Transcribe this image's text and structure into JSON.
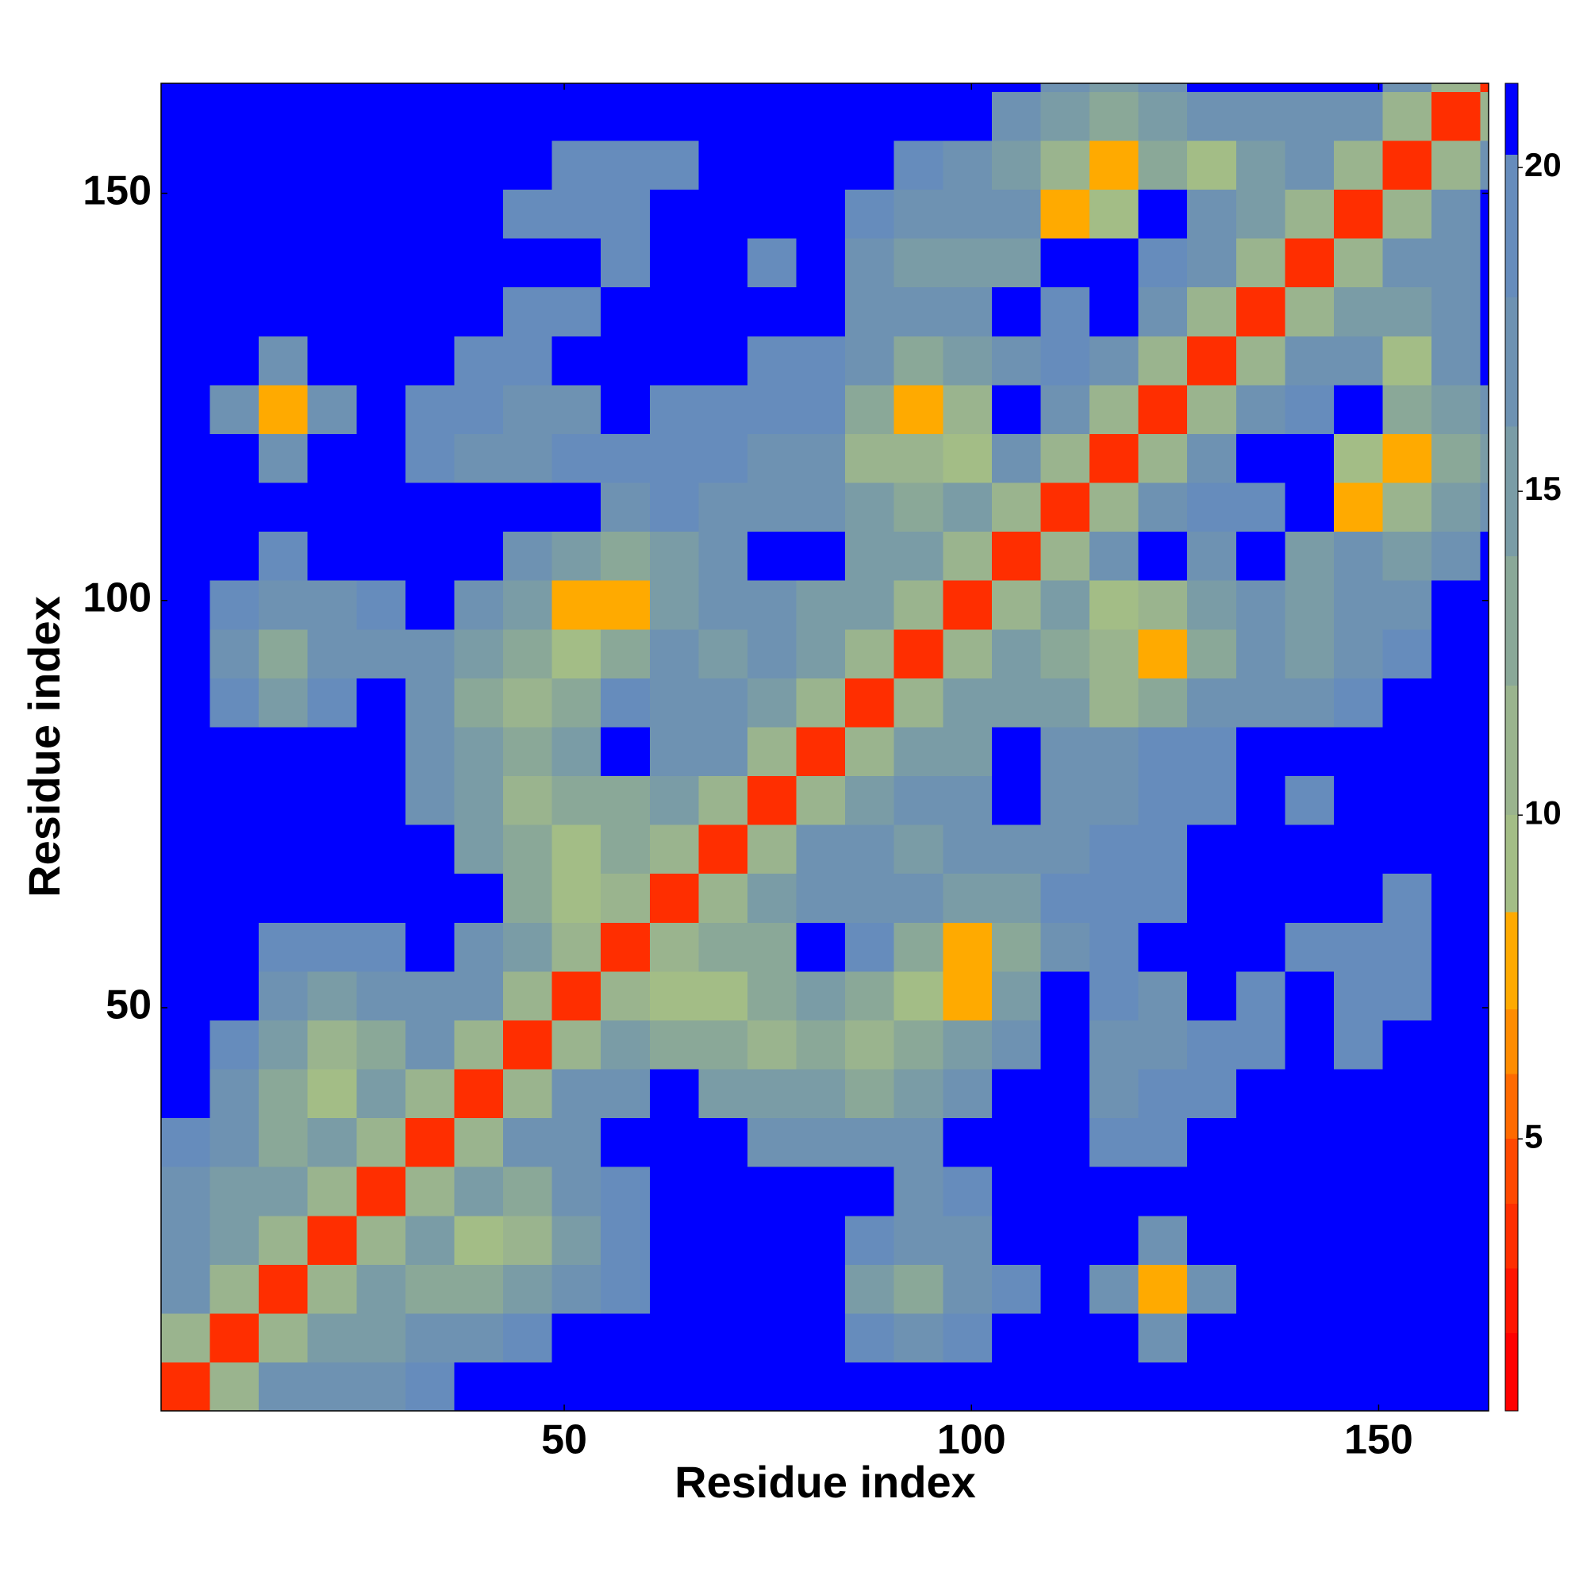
{
  "chart_data": {
    "type": "heatmap",
    "x_label": "Residue index",
    "y_label": "Residue index",
    "x": [
      3.5,
      9.5,
      15.5,
      21.5,
      27.5,
      33.5,
      39.5,
      45.5,
      51.5,
      57.5,
      63.5,
      69.5,
      75.5,
      81.5,
      87.5,
      93.5,
      99.5,
      105.5,
      111.5,
      117.5,
      123.5,
      129.5,
      135.5,
      141.5,
      147.5,
      153.5,
      159.5,
      165.5
    ],
    "y": [
      3.5,
      9.5,
      15.5,
      21.5,
      27.5,
      33.5,
      39.5,
      45.5,
      51.5,
      57.5,
      63.5,
      69.5,
      75.5,
      81.5,
      87.5,
      93.5,
      99.5,
      105.5,
      111.5,
      117.5,
      123.5,
      129.5,
      135.5,
      141.5,
      147.5,
      153.5,
      159.5,
      165.5
    ],
    "z": [
      [
        3,
        11,
        17,
        16,
        17,
        19,
        21,
        21,
        21,
        21,
        21,
        21,
        21,
        21,
        21,
        21,
        21,
        21,
        21,
        21,
        21,
        21,
        21,
        21,
        21,
        21,
        21,
        21
      ],
      [
        11,
        3,
        11,
        15,
        15,
        16,
        17,
        18,
        21,
        21,
        21,
        21,
        21,
        21,
        19,
        17,
        18,
        21,
        21,
        21,
        17,
        21,
        21,
        21,
        21,
        21,
        21,
        21
      ],
      [
        17,
        11,
        3,
        11,
        15,
        12,
        12,
        14,
        16,
        18,
        21,
        21,
        21,
        21,
        15,
        12,
        16,
        18,
        21,
        16,
        8,
        17,
        21,
        21,
        21,
        21,
        21,
        21
      ],
      [
        16,
        15,
        11,
        3,
        11,
        14,
        9,
        10,
        15,
        18,
        21,
        21,
        21,
        21,
        18,
        16,
        16,
        21,
        21,
        21,
        16,
        21,
        21,
        21,
        21,
        21,
        21,
        21
      ],
      [
        17,
        15,
        15,
        11,
        3,
        11,
        15,
        12,
        17,
        19,
        21,
        21,
        21,
        21,
        21,
        17,
        18,
        21,
        21,
        21,
        21,
        21,
        21,
        21,
        21,
        21,
        21,
        21
      ],
      [
        19,
        16,
        12,
        14,
        11,
        3,
        11,
        16,
        17,
        21,
        21,
        21,
        16,
        17,
        16,
        17,
        21,
        21,
        21,
        18,
        19,
        21,
        21,
        21,
        21,
        21,
        21,
        21
      ],
      [
        21,
        17,
        12,
        9,
        15,
        11,
        3,
        11,
        16,
        17,
        21,
        15,
        14,
        15,
        13,
        14,
        17,
        21,
        21,
        17,
        18,
        19,
        21,
        21,
        21,
        21,
        21,
        21
      ],
      [
        21,
        18,
        14,
        10,
        12,
        16,
        11,
        3,
        11,
        15,
        12,
        13,
        10,
        13,
        10,
        12,
        14,
        17,
        21,
        16,
        17,
        18,
        19,
        21,
        20,
        21,
        21,
        21
      ],
      [
        21,
        21,
        16,
        15,
        17,
        17,
        16,
        11,
        3,
        11,
        9,
        9,
        12,
        14,
        12,
        9,
        8,
        14,
        21,
        18,
        17,
        21,
        18,
        21,
        19,
        20,
        21,
        21
      ],
      [
        21,
        21,
        18,
        18,
        19,
        21,
        17,
        15,
        11,
        3,
        11,
        12,
        13,
        21,
        19,
        12,
        7,
        12,
        17,
        19,
        21,
        21,
        21,
        19,
        20,
        19,
        21,
        21
      ],
      [
        21,
        21,
        21,
        21,
        21,
        21,
        21,
        12,
        9,
        11,
        3,
        11,
        14,
        17,
        16,
        17,
        14,
        15,
        18,
        18,
        19,
        21,
        21,
        21,
        21,
        20,
        21,
        21
      ],
      [
        21,
        21,
        21,
        21,
        21,
        21,
        15,
        13,
        9,
        12,
        11,
        3,
        11,
        16,
        17,
        15,
        16,
        17,
        17,
        18,
        19,
        21,
        21,
        21,
        21,
        21,
        21,
        21
      ],
      [
        21,
        21,
        21,
        21,
        21,
        16,
        14,
        10,
        12,
        13,
        14,
        11,
        3,
        11,
        15,
        17,
        17,
        21,
        17,
        16,
        18,
        19,
        21,
        20,
        21,
        21,
        21,
        21
      ],
      [
        21,
        21,
        21,
        21,
        21,
        17,
        15,
        13,
        14,
        21,
        17,
        16,
        11,
        3,
        11,
        14,
        15,
        21,
        16,
        17,
        18,
        19,
        21,
        21,
        21,
        21,
        21,
        21
      ],
      [
        21,
        19,
        15,
        18,
        21,
        16,
        13,
        10,
        12,
        19,
        16,
        17,
        15,
        11,
        3,
        11,
        14,
        15,
        15,
        11,
        13,
        16,
        17,
        16,
        18,
        21,
        21,
        21
      ],
      [
        21,
        17,
        12,
        16,
        17,
        17,
        14,
        12,
        9,
        12,
        17,
        15,
        17,
        14,
        11,
        3,
        11,
        15,
        13,
        10,
        8,
        12,
        16,
        15,
        17,
        18,
        21,
        21
      ],
      [
        21,
        18,
        16,
        16,
        18,
        21,
        17,
        14,
        8,
        7,
        14,
        16,
        17,
        15,
        14,
        11,
        3,
        11,
        15,
        9,
        11,
        15,
        17,
        15,
        16,
        17,
        21,
        21
      ],
      [
        21,
        21,
        18,
        21,
        21,
        21,
        21,
        17,
        14,
        12,
        15,
        17,
        21,
        21,
        15,
        15,
        11,
        3,
        11,
        16,
        21,
        16,
        21,
        14,
        16,
        15,
        17,
        21
      ],
      [
        21,
        21,
        21,
        21,
        21,
        21,
        21,
        21,
        21,
        17,
        18,
        17,
        17,
        16,
        15,
        13,
        15,
        11,
        3,
        11,
        16,
        19,
        19,
        21,
        8,
        10,
        14,
        16
      ],
      [
        21,
        21,
        16,
        21,
        21,
        18,
        17,
        16,
        18,
        19,
        18,
        18,
        16,
        17,
        11,
        10,
        9,
        16,
        11,
        3,
        11,
        17,
        21,
        21,
        9,
        8,
        12,
        14
      ],
      [
        21,
        17,
        8,
        16,
        21,
        19,
        18,
        17,
        17,
        21,
        19,
        19,
        18,
        18,
        13,
        8,
        11,
        21,
        16,
        11,
        3,
        11,
        17,
        20,
        21,
        13,
        15,
        16
      ],
      [
        21,
        21,
        17,
        21,
        21,
        21,
        19,
        18,
        21,
        21,
        21,
        21,
        19,
        19,
        16,
        12,
        15,
        16,
        19,
        17,
        11,
        3,
        11,
        16,
        16,
        9,
        16,
        21
      ],
      [
        21,
        21,
        21,
        21,
        21,
        21,
        21,
        19,
        18,
        21,
        21,
        21,
        21,
        21,
        17,
        16,
        17,
        21,
        19,
        21,
        17,
        11,
        3,
        11,
        15,
        15,
        16,
        21
      ],
      [
        21,
        21,
        21,
        21,
        21,
        21,
        21,
        21,
        21,
        19,
        21,
        21,
        20,
        21,
        16,
        15,
        15,
        14,
        21,
        21,
        20,
        16,
        11,
        3,
        11,
        16,
        17,
        21
      ],
      [
        21,
        21,
        21,
        21,
        21,
        21,
        21,
        20,
        19,
        20,
        21,
        21,
        21,
        21,
        18,
        17,
        16,
        16,
        8,
        9,
        21,
        16,
        15,
        11,
        3,
        11,
        17,
        21
      ],
      [
        21,
        21,
        21,
        21,
        21,
        21,
        21,
        21,
        20,
        19,
        20,
        21,
        21,
        21,
        21,
        18,
        17,
        15,
        10,
        8,
        13,
        9,
        15,
        16,
        11,
        3,
        11,
        17
      ],
      [
        21,
        21,
        21,
        21,
        21,
        21,
        21,
        21,
        21,
        21,
        21,
        21,
        21,
        21,
        21,
        21,
        21,
        17,
        14,
        12,
        15,
        16,
        16,
        17,
        17,
        11,
        3,
        11
      ],
      [
        21,
        21,
        21,
        21,
        21,
        21,
        21,
        21,
        21,
        21,
        21,
        21,
        21,
        21,
        21,
        21,
        21,
        21,
        16,
        14,
        16,
        21,
        21,
        21,
        21,
        17,
        11,
        3
      ]
    ],
    "xlim": [
      0.5,
      163.5
    ],
    "xticks": [
      50,
      100,
      150
    ],
    "ylim": [
      0.5,
      163.5
    ],
    "yticks": [
      50,
      100,
      150
    ],
    "zlim": [
      0.8,
      21.3
    ],
    "zticks": [
      5,
      10,
      15,
      20
    ],
    "color_levels": [
      0.8,
      2,
      3,
      4,
      5,
      6,
      7,
      8.5,
      10,
      12,
      14,
      16,
      18,
      20.2,
      21.3
    ],
    "colors": [
      "#ff0000",
      "#ff1400",
      "#ff2e00",
      "#ff4800",
      "#ff6a00",
      "#ff8c00",
      "#ffaa00",
      "#a3bd86",
      "#9ab48e",
      "#8aa898",
      "#7a9ca6",
      "#6e92b2",
      "#668cbc",
      "#0000ff"
    ]
  }
}
